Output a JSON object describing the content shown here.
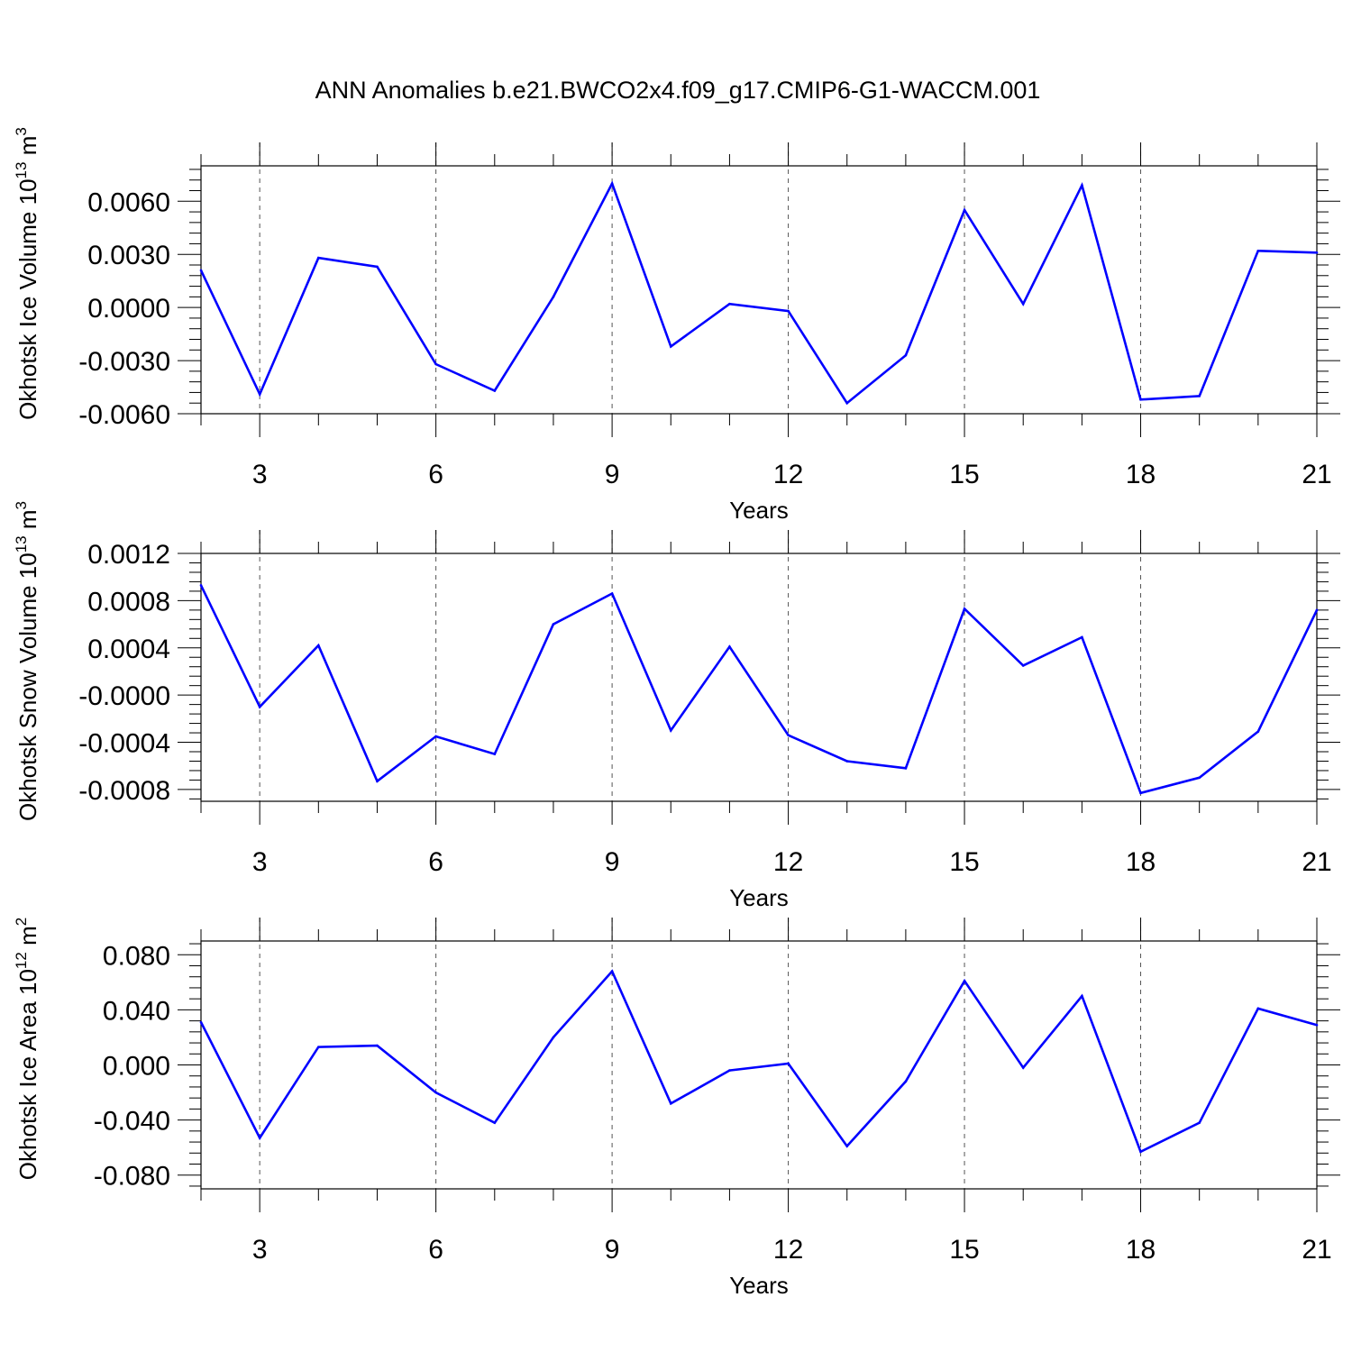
{
  "title": "ANN Anomalies b.e21.BWCO2x4.f09_g17.CMIP6-G1-WACCM.001",
  "colors": {
    "series": "#0000ff",
    "axis": "#000000",
    "grid": "#555555"
  },
  "chart_data": [
    {
      "type": "line",
      "ylabel": {
        "base": "Okhotsk Ice Volume 10",
        "exp": "13",
        "unit": " m",
        "unit_exp": "3"
      },
      "xlabel": "Years",
      "xlim": [
        2,
        21
      ],
      "ylim": [
        -0.006,
        0.008
      ],
      "x_ticks": [
        3,
        6,
        9,
        12,
        15,
        18,
        21
      ],
      "y_ticks": [
        {
          "value": -0.006,
          "label": "-0.0060"
        },
        {
          "value": -0.003,
          "label": "-0.0030"
        },
        {
          "value": 0.0,
          "label": "0.0000"
        },
        {
          "value": 0.003,
          "label": "0.0030"
        },
        {
          "value": 0.006,
          "label": "0.0060"
        }
      ],
      "grid": "vertical dashed at major x ticks",
      "x": [
        2,
        3,
        4,
        5,
        6,
        7,
        8,
        9,
        10,
        11,
        12,
        13,
        14,
        15,
        16,
        17,
        18,
        19,
        20,
        21
      ],
      "values": [
        0.0021,
        -0.0049,
        0.0028,
        0.0023,
        -0.0032,
        -0.0047,
        0.0006,
        0.007,
        -0.0022,
        0.0002,
        -0.0002,
        -0.0054,
        -0.0027,
        0.0055,
        0.0002,
        0.0069,
        -0.0052,
        -0.005,
        0.0032,
        0.0031
      ]
    },
    {
      "type": "line",
      "ylabel": {
        "base": "Okhotsk Snow Volume 10",
        "exp": "13",
        "unit": " m",
        "unit_exp": "3"
      },
      "xlabel": "Years",
      "xlim": [
        2,
        21
      ],
      "ylim": [
        -0.0009,
        0.0012
      ],
      "x_ticks": [
        3,
        6,
        9,
        12,
        15,
        18,
        21
      ],
      "y_ticks": [
        {
          "value": -0.0008,
          "label": "-0.0008"
        },
        {
          "value": -0.0004,
          "label": "-0.0004"
        },
        {
          "value": 0.0,
          "label": "-0.0000"
        },
        {
          "value": 0.0004,
          "label": "0.0004"
        },
        {
          "value": 0.0008,
          "label": "0.0008"
        },
        {
          "value": 0.0012,
          "label": "0.0012"
        }
      ],
      "grid": "vertical dashed at major x ticks",
      "x": [
        2,
        3,
        4,
        5,
        6,
        7,
        8,
        9,
        10,
        11,
        12,
        13,
        14,
        15,
        16,
        17,
        18,
        19,
        20,
        21
      ],
      "values": [
        0.00093,
        -0.0001,
        0.00042,
        -0.00073,
        -0.00035,
        -0.0005,
        0.0006,
        0.00086,
        -0.0003,
        0.00041,
        -0.00034,
        -0.00056,
        -0.00062,
        0.00073,
        0.00025,
        0.00049,
        -0.00083,
        -0.0007,
        -0.00031,
        0.00072
      ]
    },
    {
      "type": "line",
      "ylabel": {
        "base": "Okhotsk Ice Area 10",
        "exp": "12",
        "unit": " m",
        "unit_exp": "2"
      },
      "xlabel": "Years",
      "xlim": [
        2,
        21
      ],
      "ylim": [
        -0.09,
        0.09
      ],
      "x_ticks": [
        3,
        6,
        9,
        12,
        15,
        18,
        21
      ],
      "y_ticks": [
        {
          "value": -0.08,
          "label": "-0.080"
        },
        {
          "value": -0.04,
          "label": "-0.040"
        },
        {
          "value": 0.0,
          "label": "0.000"
        },
        {
          "value": 0.04,
          "label": "0.040"
        },
        {
          "value": 0.08,
          "label": "0.080"
        }
      ],
      "grid": "vertical dashed at major x ticks",
      "x": [
        2,
        3,
        4,
        5,
        6,
        7,
        8,
        9,
        10,
        11,
        12,
        13,
        14,
        15,
        16,
        17,
        18,
        19,
        20,
        21
      ],
      "values": [
        0.031,
        -0.053,
        0.013,
        0.014,
        -0.02,
        -0.042,
        0.02,
        0.068,
        -0.028,
        -0.004,
        0.001,
        -0.059,
        -0.012,
        0.061,
        -0.002,
        0.05,
        -0.063,
        -0.042,
        0.041,
        0.029
      ]
    }
  ]
}
